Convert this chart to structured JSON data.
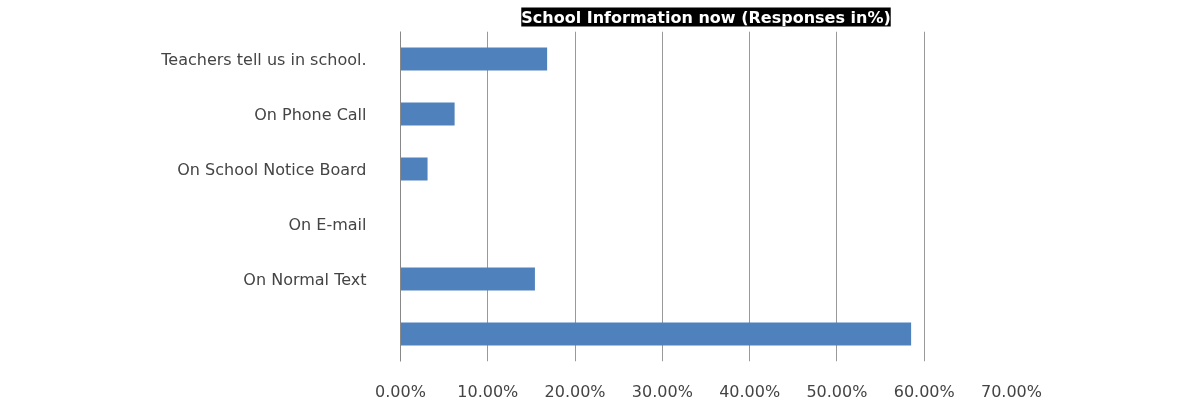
{
  "chart_data": {
    "type": "bar",
    "orientation": "horizontal",
    "title": "School Information now (Responses in%)",
    "categories": [
      "Teachers tell us in school.",
      "On Phone Call",
      "On School Notice Board",
      "On E-mail",
      "On Normal Text",
      null
    ],
    "values": [
      16.8,
      6.2,
      3.1,
      0,
      15.4,
      58.5
    ],
    "color": "#4f81bd",
    "xlim": [
      0,
      70
    ],
    "xticks": [
      {
        "value": 0,
        "label": "0.00%"
      },
      {
        "value": 10,
        "label": "10.00%"
      },
      {
        "value": 20,
        "label": "20.00%"
      },
      {
        "value": 30,
        "label": "30.00%"
      },
      {
        "value": 40,
        "label": "40.00%"
      },
      {
        "value": 50,
        "label": "50.00%"
      },
      {
        "value": 60,
        "label": "60.00%"
      },
      {
        "value": 70,
        "label": "70.00%"
      }
    ],
    "grid": "x"
  }
}
